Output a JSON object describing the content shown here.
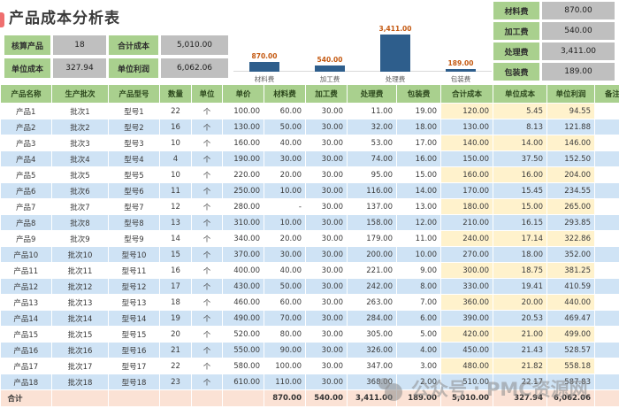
{
  "title": "产品成本分析表",
  "kpis": [
    {
      "label": "核算产品",
      "value": "18"
    },
    {
      "label": "合计成本",
      "value": "5,010.00"
    },
    {
      "label": "单位成本",
      "value": "327.94"
    },
    {
      "label": "单位利润",
      "value": "6,062.06"
    }
  ],
  "chart_data": {
    "type": "bar",
    "categories": [
      "材料费",
      "加工费",
      "处理费",
      "包装费"
    ],
    "values": [
      870,
      540,
      3411,
      189
    ],
    "value_labels": [
      "870.00",
      "540.00",
      "3,411.00",
      "189.00"
    ],
    "title": "",
    "xlabel": "",
    "ylabel": "",
    "ylim": [
      0,
      3411
    ],
    "grid": false,
    "legend": false,
    "bar_color": "#2e5e8c",
    "value_label_color": "#c45911"
  },
  "right_panel": [
    {
      "label": "材料费",
      "value": "870.00"
    },
    {
      "label": "加工费",
      "value": "540.00"
    },
    {
      "label": "处理费",
      "value": "3,411.00"
    },
    {
      "label": "包装费",
      "value": "189.00"
    }
  ],
  "table": {
    "columns": [
      "产品名称",
      "生产批次",
      "产品型号",
      "数量",
      "单位",
      "单价",
      "材料费",
      "加工费",
      "处理费",
      "包装费",
      "合计成本",
      "单位成本",
      "单位利润",
      "备注"
    ],
    "rows": [
      [
        "产品1",
        "批次1",
        "型号1",
        "22",
        "个",
        "100.00",
        "60.00",
        "30.00",
        "11.00",
        "19.00",
        "120.00",
        "5.45",
        "94.55",
        ""
      ],
      [
        "产品2",
        "批次2",
        "型号2",
        "16",
        "个",
        "130.00",
        "50.00",
        "30.00",
        "32.00",
        "18.00",
        "130.00",
        "8.13",
        "121.88",
        ""
      ],
      [
        "产品3",
        "批次3",
        "型号3",
        "10",
        "个",
        "160.00",
        "40.00",
        "30.00",
        "53.00",
        "17.00",
        "140.00",
        "14.00",
        "146.00",
        ""
      ],
      [
        "产品4",
        "批次4",
        "型号4",
        "4",
        "个",
        "190.00",
        "30.00",
        "30.00",
        "74.00",
        "16.00",
        "150.00",
        "37.50",
        "152.50",
        ""
      ],
      [
        "产品5",
        "批次5",
        "型号5",
        "10",
        "个",
        "220.00",
        "20.00",
        "30.00",
        "95.00",
        "15.00",
        "160.00",
        "16.00",
        "204.00",
        ""
      ],
      [
        "产品6",
        "批次6",
        "型号6",
        "11",
        "个",
        "250.00",
        "10.00",
        "30.00",
        "116.00",
        "14.00",
        "170.00",
        "15.45",
        "234.55",
        ""
      ],
      [
        "产品7",
        "批次7",
        "型号7",
        "12",
        "个",
        "280.00",
        "-",
        "30.00",
        "137.00",
        "13.00",
        "180.00",
        "15.00",
        "265.00",
        ""
      ],
      [
        "产品8",
        "批次8",
        "型号8",
        "13",
        "个",
        "310.00",
        "10.00",
        "30.00",
        "158.00",
        "12.00",
        "210.00",
        "16.15",
        "293.85",
        ""
      ],
      [
        "产品9",
        "批次9",
        "型号9",
        "14",
        "个",
        "340.00",
        "20.00",
        "30.00",
        "179.00",
        "11.00",
        "240.00",
        "17.14",
        "322.86",
        ""
      ],
      [
        "产品10",
        "批次10",
        "型号10",
        "15",
        "个",
        "370.00",
        "30.00",
        "30.00",
        "200.00",
        "10.00",
        "270.00",
        "18.00",
        "352.00",
        ""
      ],
      [
        "产品11",
        "批次11",
        "型号11",
        "16",
        "个",
        "400.00",
        "40.00",
        "30.00",
        "221.00",
        "9.00",
        "300.00",
        "18.75",
        "381.25",
        ""
      ],
      [
        "产品12",
        "批次12",
        "型号12",
        "17",
        "个",
        "430.00",
        "50.00",
        "30.00",
        "242.00",
        "8.00",
        "330.00",
        "19.41",
        "410.59",
        ""
      ],
      [
        "产品13",
        "批次13",
        "型号13",
        "18",
        "个",
        "460.00",
        "60.00",
        "30.00",
        "263.00",
        "7.00",
        "360.00",
        "20.00",
        "440.00",
        ""
      ],
      [
        "产品14",
        "批次14",
        "型号14",
        "19",
        "个",
        "490.00",
        "70.00",
        "30.00",
        "284.00",
        "6.00",
        "390.00",
        "20.53",
        "469.47",
        ""
      ],
      [
        "产品15",
        "批次15",
        "型号15",
        "20",
        "个",
        "520.00",
        "80.00",
        "30.00",
        "305.00",
        "5.00",
        "420.00",
        "21.00",
        "499.00",
        ""
      ],
      [
        "产品16",
        "批次16",
        "型号16",
        "21",
        "个",
        "550.00",
        "90.00",
        "30.00",
        "326.00",
        "4.00",
        "450.00",
        "21.43",
        "528.57",
        ""
      ],
      [
        "产品17",
        "批次17",
        "型号17",
        "22",
        "个",
        "580.00",
        "100.00",
        "30.00",
        "347.00",
        "3.00",
        "480.00",
        "21.82",
        "558.18",
        ""
      ],
      [
        "产品18",
        "批次18",
        "型号18",
        "23",
        "个",
        "610.00",
        "110.00",
        "30.00",
        "368.00",
        "2.00",
        "510.00",
        "22.17",
        "587.83",
        ""
      ]
    ],
    "total_row": [
      "合计",
      "",
      "",
      "",
      "",
      "",
      "870.00",
      "540.00",
      "3,411.00",
      "189.00",
      "5,010.00",
      "327.94",
      "6,062.06",
      ""
    ]
  },
  "watermark": {
    "text_1": "公众号",
    "separator": "·",
    "text_2": "PMC资源网"
  },
  "colors": {
    "header_green": "#a9d08e",
    "value_gray": "#bfbfbf",
    "row_blue": "#cfe3f5",
    "highlight_yellow": "#fff2cc",
    "total_peach": "#fbe2d5",
    "bar_blue": "#2e5e8c",
    "bar_label_orange": "#c45911"
  }
}
